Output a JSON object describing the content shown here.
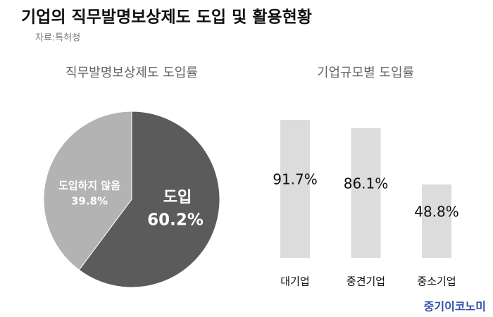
{
  "title": "기업의 직무발명보상제도 도입 및 활용현황",
  "source": "자료:특허청",
  "watermark": "중기이코노미",
  "chart_data": [
    {
      "type": "pie",
      "title": "직무발명보상제도 도입률",
      "categories": [
        "도입",
        "도입하지 않음"
      ],
      "values": [
        60.2,
        39.8
      ],
      "value_labels": [
        "60.2%",
        "39.8%"
      ],
      "colors": [
        "#5b5b5b",
        "#b3b3b3"
      ]
    },
    {
      "type": "bar",
      "title": "기업규모별 도입률",
      "categories": [
        "대기업",
        "중견기업",
        "중소기업"
      ],
      "values": [
        91.7,
        86.1,
        48.8
      ],
      "value_labels": [
        "91.7%",
        "86.1%",
        "48.8%"
      ],
      "color": "#dcdcdc"
    }
  ]
}
